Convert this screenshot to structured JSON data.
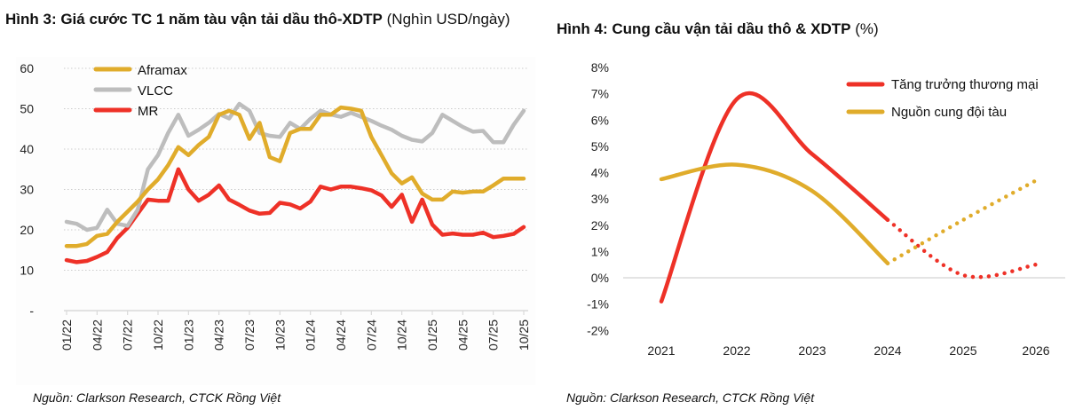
{
  "figures": {
    "left": {
      "title_bold": "Hình 3: Giá cước TC 1 năm tàu vận tải dầu thô-XDTP",
      "title_unit": " (Nghìn USD/ngày)",
      "source": "Nguồn: Clarkson Research, CTCK Rồng Việt"
    },
    "right": {
      "title_bold": "Hình 4: Cung cầu vận tải dầu thô & XDTP",
      "title_unit": " (%)",
      "source": "Nguồn: Clarkson Research, CTCK Rồng Việt"
    }
  },
  "colors": {
    "aframax": "#e0ac2b",
    "vlcc": "#bdbdbd",
    "mr": "#ee3127",
    "trade": "#ee3127",
    "supply": "#e0ac2b",
    "grid": "#cccccc"
  },
  "chart_data": [
    {
      "type": "line",
      "title": "Hình 3: Giá cước TC 1 năm tàu vận tải dầu thô-XDTP (Nghìn USD/ngày)",
      "xlabel": "",
      "ylabel": "Nghìn USD/ngày",
      "ylim": [
        0,
        60
      ],
      "yticks": [
        0,
        10,
        20,
        30,
        40,
        50,
        60
      ],
      "ytick_labels": [
        "-",
        "10",
        "20",
        "30",
        "40",
        "50",
        "60"
      ],
      "grid": true,
      "legend_position": "top-left",
      "x_tick_labels": [
        "01/22",
        "04/22",
        "07/22",
        "10/22",
        "01/23",
        "04/23",
        "07/23",
        "10/23",
        "01/24",
        "04/24",
        "07/24",
        "10/24",
        "01/25",
        "04/25",
        "07/25",
        "10/25"
      ],
      "x_months_count": 46,
      "series": [
        {
          "name": "Aframax",
          "key": "aframax",
          "values": [
            16,
            16,
            16.5,
            18.5,
            19,
            22,
            24.5,
            27,
            30,
            32.5,
            36,
            40.5,
            38.5,
            41,
            43,
            48.5,
            49.5,
            48.5,
            42.5,
            46.5,
            38,
            37,
            44,
            45,
            45,
            48.5,
            48.5,
            50.3,
            50,
            49.5,
            43,
            38.5,
            34,
            31.5,
            33,
            29,
            27.5,
            27.5,
            29.5,
            29.2,
            29.5,
            29.5,
            31,
            32.7,
            32.7,
            32.7
          ]
        },
        {
          "name": "VLCC",
          "key": "vlcc",
          "values": [
            22,
            21.5,
            20,
            20.5,
            25,
            21.5,
            21,
            25,
            35,
            38.5,
            44,
            48.5,
            43.3,
            44.8,
            46.5,
            48.7,
            47.6,
            51.2,
            49.5,
            44,
            43.3,
            43,
            46.5,
            45,
            47.5,
            49.5,
            48.6,
            48,
            49,
            48,
            47,
            45.8,
            44.8,
            43.3,
            42.3,
            41.9,
            44,
            48.5,
            47,
            45.5,
            44.3,
            44.5,
            41.7,
            41.7,
            46,
            49.5
          ]
        },
        {
          "name": "MR",
          "key": "mr",
          "values": [
            12.5,
            12,
            12.3,
            13.3,
            14.5,
            18,
            20.5,
            24,
            27.5,
            27.2,
            27.2,
            35,
            30,
            27.2,
            28.7,
            31,
            27.5,
            26.2,
            24.8,
            24,
            24.2,
            26.7,
            26.3,
            25.3,
            27,
            30.7,
            30,
            30.7,
            30.7,
            30.3,
            29.8,
            28.5,
            25.7,
            28.7,
            22,
            27.5,
            21.3,
            18.8,
            19.1,
            18.8,
            18.8,
            19.3,
            18.2,
            18.5,
            19,
            20.7
          ]
        }
      ]
    },
    {
      "type": "line",
      "title": "Hình 4: Cung cầu vận tải dầu thô & XDTP (%)",
      "xlabel": "",
      "ylabel": "%",
      "ylim": [
        -2,
        8
      ],
      "yticks": [
        -2,
        -1,
        0,
        1,
        2,
        3,
        4,
        5,
        6,
        7,
        8
      ],
      "ytick_labels": [
        "-2%",
        "-1%",
        "0%",
        "1%",
        "2%",
        "3%",
        "4%",
        "5%",
        "6%",
        "7%",
        "8%"
      ],
      "grid": false,
      "legend_position": "top-right",
      "categories": [
        "2021",
        "2022",
        "2023",
        "2024",
        "2025",
        "2026"
      ],
      "forecast_from": "2024",
      "series": [
        {
          "name": "Tăng trưởng thương mại",
          "key": "trade",
          "values": [
            -0.9,
            6.8,
            4.7,
            2.2,
            0.1,
            0.5
          ],
          "peak": 7.1
        },
        {
          "name": "Nguồn cung đội tàu",
          "key": "supply",
          "values": [
            3.75,
            4.3,
            3.3,
            0.55,
            2.2,
            3.7
          ]
        }
      ]
    }
  ]
}
